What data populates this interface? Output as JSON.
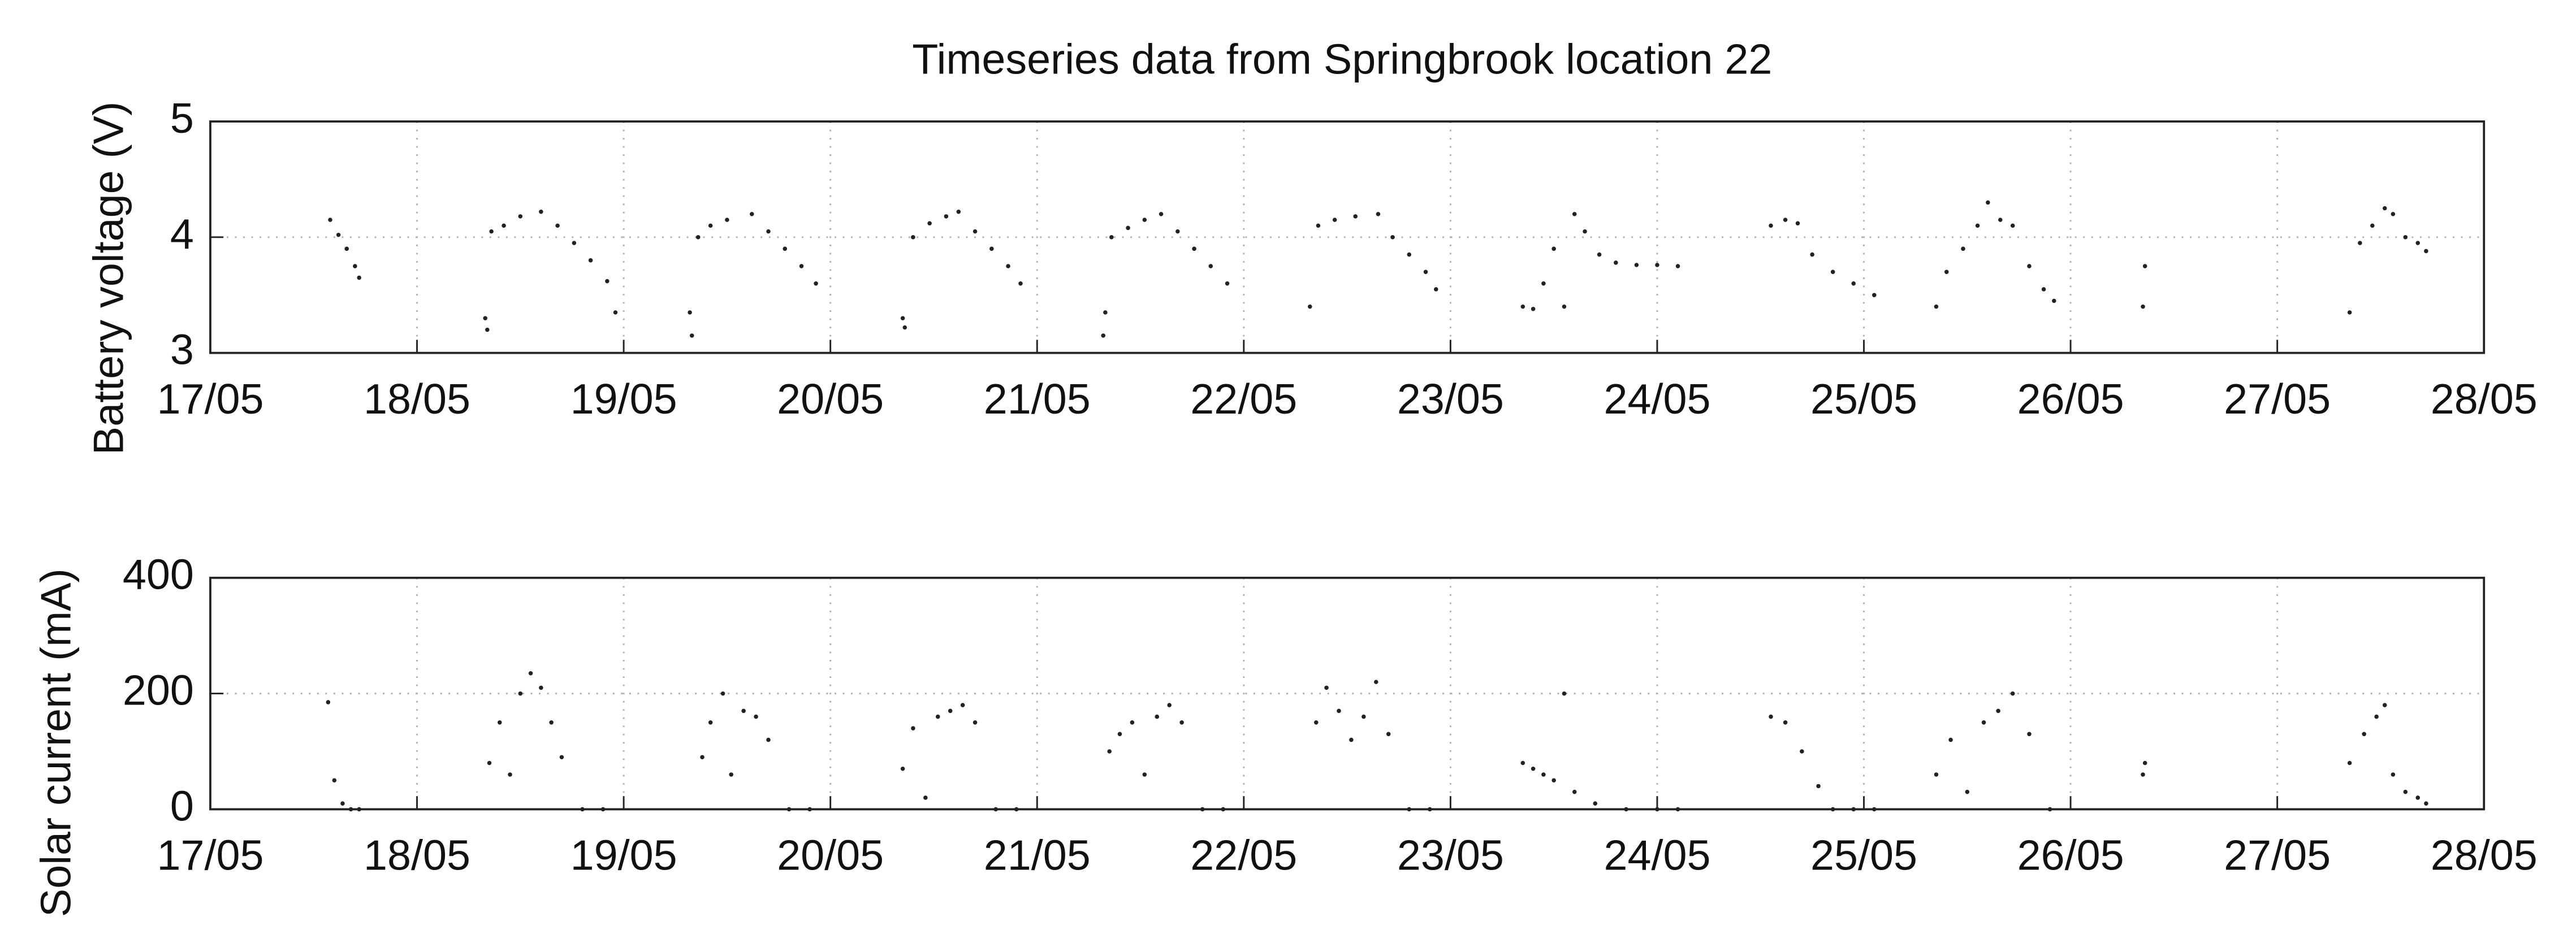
{
  "chart_data": [
    {
      "type": "scatter",
      "title": "Timeseries data from Springbrook location 22",
      "ylabel": "Battery voltage (V)",
      "color": "#222222",
      "grid": true,
      "xlim": [
        17,
        28
      ],
      "ylim": [
        3,
        5
      ],
      "yticks": [
        3,
        4,
        5
      ],
      "xticks": [
        {
          "value": 17,
          "label": "17/05"
        },
        {
          "value": 18,
          "label": "18/05"
        },
        {
          "value": 19,
          "label": "19/05"
        },
        {
          "value": 20,
          "label": "20/05"
        },
        {
          "value": 21,
          "label": "21/05"
        },
        {
          "value": 22,
          "label": "22/05"
        },
        {
          "value": 23,
          "label": "23/05"
        },
        {
          "value": 24,
          "label": "24/05"
        },
        {
          "value": 25,
          "label": "25/05"
        },
        {
          "value": 26,
          "label": "26/05"
        },
        {
          "value": 27,
          "label": "27/05"
        },
        {
          "value": 28,
          "label": "28/05"
        }
      ],
      "x": [
        17.58,
        17.62,
        17.66,
        17.7,
        17.72,
        18.33,
        18.34,
        18.36,
        18.42,
        18.5,
        18.6,
        18.68,
        18.76,
        18.84,
        18.92,
        18.96,
        19.32,
        19.33,
        19.36,
        19.42,
        19.5,
        19.62,
        19.7,
        19.78,
        19.86,
        19.93,
        20.35,
        20.36,
        20.4,
        20.48,
        20.56,
        20.62,
        20.7,
        20.78,
        20.86,
        20.92,
        21.32,
        21.33,
        21.36,
        21.44,
        21.52,
        21.6,
        21.68,
        21.76,
        21.84,
        21.92,
        22.32,
        22.36,
        22.44,
        22.54,
        22.65,
        22.72,
        22.8,
        22.88,
        22.93,
        23.35,
        23.4,
        23.45,
        23.5,
        23.55,
        23.6,
        23.65,
        23.72,
        23.8,
        23.9,
        24.0,
        24.1,
        24.55,
        24.62,
        24.68,
        24.75,
        24.85,
        24.95,
        25.05,
        25.35,
        25.4,
        25.48,
        25.55,
        25.6,
        25.66,
        25.72,
        25.8,
        25.87,
        25.92,
        26.35,
        26.36,
        27.35,
        27.4,
        27.46,
        27.52,
        27.56,
        27.62,
        27.68,
        27.72
      ],
      "values": [
        4.15,
        4.02,
        3.9,
        3.75,
        3.65,
        3.3,
        3.2,
        4.05,
        4.1,
        4.18,
        4.22,
        4.1,
        3.95,
        3.8,
        3.62,
        3.35,
        3.35,
        3.15,
        4.0,
        4.1,
        4.15,
        4.2,
        4.05,
        3.9,
        3.75,
        3.6,
        3.3,
        3.22,
        4.0,
        4.12,
        4.18,
        4.22,
        4.05,
        3.9,
        3.75,
        3.6,
        3.15,
        3.35,
        4.0,
        4.08,
        4.15,
        4.2,
        4.05,
        3.9,
        3.75,
        3.6,
        3.4,
        4.1,
        4.15,
        4.18,
        4.2,
        4.0,
        3.85,
        3.7,
        3.55,
        3.4,
        3.38,
        3.6,
        3.9,
        3.4,
        4.2,
        4.05,
        3.85,
        3.78,
        3.76,
        3.76,
        3.75,
        4.1,
        4.15,
        4.12,
        3.85,
        3.7,
        3.6,
        3.5,
        3.4,
        3.7,
        3.9,
        4.1,
        4.3,
        4.15,
        4.1,
        3.75,
        3.55,
        3.45,
        3.4,
        3.75,
        3.35,
        3.95,
        4.1,
        4.25,
        4.2,
        4.0,
        3.95,
        3.88
      ]
    },
    {
      "type": "scatter",
      "ylabel": "Solar current (mA)",
      "color": "#222222",
      "grid": true,
      "xlim": [
        17,
        28
      ],
      "ylim": [
        0,
        400
      ],
      "yticks": [
        0,
        200,
        400
      ],
      "xticks": [
        {
          "value": 17,
          "label": "17/05"
        },
        {
          "value": 18,
          "label": "18/05"
        },
        {
          "value": 19,
          "label": "19/05"
        },
        {
          "value": 20,
          "label": "20/05"
        },
        {
          "value": 21,
          "label": "21/05"
        },
        {
          "value": 22,
          "label": "22/05"
        },
        {
          "value": 23,
          "label": "23/05"
        },
        {
          "value": 24,
          "label": "24/05"
        },
        {
          "value": 25,
          "label": "25/05"
        },
        {
          "value": 26,
          "label": "26/05"
        },
        {
          "value": 27,
          "label": "27/05"
        },
        {
          "value": 28,
          "label": "28/05"
        }
      ],
      "x": [
        17.57,
        17.6,
        17.64,
        17.68,
        17.72,
        18.35,
        18.4,
        18.45,
        18.5,
        18.55,
        18.6,
        18.65,
        18.7,
        18.8,
        18.9,
        19.38,
        19.42,
        19.48,
        19.52,
        19.58,
        19.64,
        19.7,
        19.8,
        19.9,
        20.35,
        20.4,
        20.46,
        20.52,
        20.58,
        20.64,
        20.7,
        20.8,
        20.9,
        21.35,
        21.4,
        21.46,
        21.52,
        21.58,
        21.64,
        21.7,
        21.8,
        21.9,
        22.35,
        22.4,
        22.46,
        22.52,
        22.58,
        22.64,
        22.7,
        22.8,
        22.9,
        23.35,
        23.4,
        23.45,
        23.5,
        23.55,
        23.6,
        23.7,
        23.85,
        24.0,
        24.1,
        24.55,
        24.62,
        24.7,
        24.78,
        24.85,
        24.95,
        25.05,
        25.35,
        25.42,
        25.5,
        25.58,
        25.65,
        25.72,
        25.8,
        25.9,
        26.35,
        26.36,
        27.35,
        27.42,
        27.48,
        27.52,
        27.56,
        27.62,
        27.68,
        27.72
      ],
      "values": [
        185,
        50,
        10,
        0,
        0,
        80,
        150,
        60,
        200,
        235,
        210,
        150,
        90,
        0,
        0,
        90,
        150,
        200,
        60,
        170,
        160,
        120,
        0,
        0,
        70,
        140,
        20,
        160,
        170,
        180,
        150,
        0,
        0,
        100,
        130,
        150,
        60,
        160,
        180,
        150,
        0,
        0,
        150,
        210,
        170,
        120,
        160,
        220,
        130,
        0,
        0,
        80,
        70,
        60,
        50,
        200,
        30,
        10,
        0,
        0,
        0,
        160,
        150,
        100,
        40,
        0,
        0,
        0,
        60,
        120,
        30,
        150,
        170,
        200,
        130,
        0,
        60,
        80,
        80,
        130,
        160,
        180,
        60,
        30,
        20,
        10
      ]
    }
  ]
}
